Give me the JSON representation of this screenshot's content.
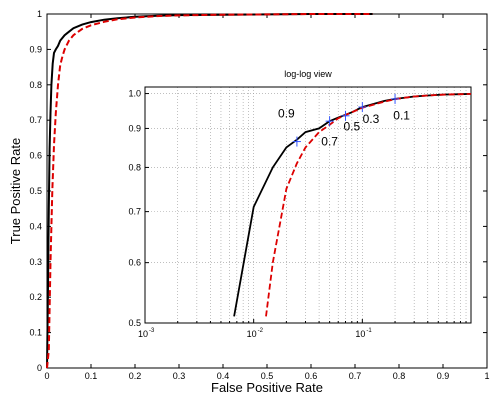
{
  "chart_data": [
    {
      "type": "line",
      "xlabel": "False Positive Rate",
      "ylabel": "True Positive Rate",
      "xlim": [
        0,
        1
      ],
      "ylim": [
        0,
        1
      ],
      "xticks": [
        "0",
        "0.1",
        "0.2",
        "0.3",
        "0.4",
        "0.5",
        "0.6",
        "0.7",
        "0.8",
        "0.9",
        "1"
      ],
      "yticks": [
        "0",
        "0.1",
        "0.2",
        "0.3",
        "0.4",
        "0.5",
        "0.6",
        "0.7",
        "0.8",
        "0.9",
        "1"
      ],
      "grid": false,
      "series": [
        {
          "color": "#000000",
          "style": "solid",
          "x": [
            0,
            0.002,
            0.004,
            0.006,
            0.008,
            0.01,
            0.013,
            0.016,
            0.02,
            0.025,
            0.03,
            0.04,
            0.05,
            0.06,
            0.08,
            0.1,
            0.13,
            0.16,
            0.2,
            0.25,
            0.3,
            0.4,
            0.5,
            0.6,
            0.74
          ],
          "y": [
            0,
            0.2,
            0.45,
            0.62,
            0.72,
            0.8,
            0.86,
            0.89,
            0.9,
            0.91,
            0.925,
            0.94,
            0.95,
            0.96,
            0.97,
            0.977,
            0.984,
            0.988,
            0.992,
            0.995,
            0.997,
            0.998,
            0.999,
            1.0,
            1.0
          ]
        },
        {
          "color": "#dd0000",
          "style": "dashed",
          "x": [
            0,
            0.004,
            0.008,
            0.012,
            0.016,
            0.02,
            0.025,
            0.03,
            0.035,
            0.04,
            0.05,
            0.06,
            0.08,
            0.1,
            0.13,
            0.16,
            0.2,
            0.25,
            0.3,
            0.4,
            0.5,
            0.6,
            0.74
          ],
          "y": [
            0,
            0.05,
            0.3,
            0.5,
            0.63,
            0.72,
            0.8,
            0.855,
            0.88,
            0.9,
            0.925,
            0.94,
            0.958,
            0.968,
            0.978,
            0.985,
            0.99,
            0.994,
            0.996,
            0.998,
            0.999,
            1.0,
            1.0
          ]
        }
      ]
    },
    {
      "type": "line",
      "title": "log-log view",
      "x_scale": "log",
      "y_scale": "log",
      "xlim": [
        0.001,
        1
      ],
      "ylim": [
        0.5,
        1.02
      ],
      "xticks": [
        0.001,
        0.01,
        0.1
      ],
      "xtick_labels": [
        "10",
        "10",
        "10"
      ],
      "xtick_exponents": [
        "-3",
        "-2",
        "-1"
      ],
      "yticks": [
        0.5,
        0.6,
        0.7,
        0.8,
        0.9,
        1.0
      ],
      "ytick_labels": [
        "0.5",
        "0.6",
        "0.7",
        "0.8",
        "0.9",
        "1.0"
      ],
      "grid": true,
      "series": [
        {
          "color": "#000000",
          "style": "solid",
          "x": [
            0.0066,
            0.01,
            0.015,
            0.02,
            0.025,
            0.03,
            0.04,
            0.05,
            0.06,
            0.08,
            0.1,
            0.13,
            0.16,
            0.2,
            0.25,
            0.3,
            0.4,
            0.5,
            0.6,
            0.8,
            1.0
          ],
          "y": [
            0.51,
            0.71,
            0.8,
            0.85,
            0.87,
            0.89,
            0.9,
            0.92,
            0.93,
            0.945,
            0.96,
            0.97,
            0.978,
            0.984,
            0.988,
            0.991,
            0.994,
            0.996,
            0.997,
            0.998,
            0.999
          ]
        },
        {
          "color": "#dd0000",
          "style": "dashed",
          "x": [
            0.013,
            0.015,
            0.02,
            0.025,
            0.03,
            0.04,
            0.05,
            0.06,
            0.08,
            0.1,
            0.13,
            0.16,
            0.2,
            0.25,
            0.3,
            0.4,
            0.5,
            0.6,
            0.8,
            1.0
          ],
          "y": [
            0.51,
            0.6,
            0.75,
            0.81,
            0.85,
            0.89,
            0.91,
            0.928,
            0.945,
            0.958,
            0.968,
            0.976,
            0.983,
            0.988,
            0.991,
            0.994,
            0.996,
            0.997,
            0.998,
            0.999
          ]
        }
      ],
      "markers": [
        {
          "x": 0.025,
          "y": 0.865,
          "color": "#3355ff"
        },
        {
          "x": 0.05,
          "y": 0.92,
          "color": "#3355ff"
        },
        {
          "x": 0.07,
          "y": 0.935,
          "color": "#3355ff"
        },
        {
          "x": 0.1,
          "y": 0.96,
          "color": "#3355ff"
        },
        {
          "x": 0.2,
          "y": 0.984,
          "color": "#3355ff"
        }
      ],
      "annotations": [
        {
          "text": "0.9",
          "x": 0.02,
          "y": 0.93
        },
        {
          "text": "0.7",
          "x": 0.05,
          "y": 0.855
        },
        {
          "text": "0.5",
          "x": 0.08,
          "y": 0.895
        },
        {
          "text": "0.3",
          "x": 0.12,
          "y": 0.915
        },
        {
          "text": "0.1",
          "x": 0.23,
          "y": 0.925
        }
      ]
    }
  ]
}
